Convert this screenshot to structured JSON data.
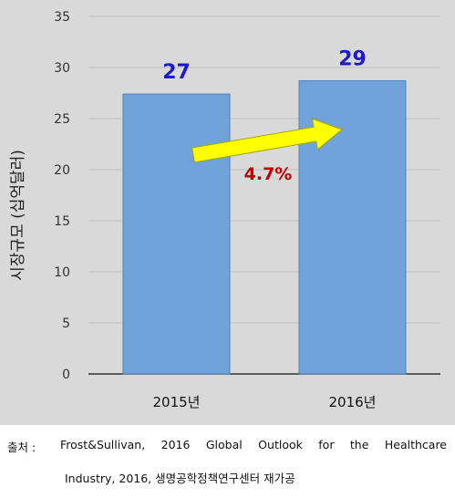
{
  "chart_data": {
    "type": "bar",
    "categories": [
      "2015년",
      "2016년"
    ],
    "values": [
      27.4,
      28.7
    ],
    "data_labels": [
      "27",
      "29"
    ],
    "ylabel": "시장규모 (십억달러)",
    "ylim": [
      0,
      35
    ],
    "yticks": [
      "0",
      "5",
      "10",
      "15",
      "20",
      "25",
      "30",
      "35"
    ],
    "grid": true,
    "bar_color": "#6fa3d9",
    "label_color": "#1f1ac9",
    "annotation": {
      "text": "4.7%",
      "color": "#c00000",
      "arrow_color": "#ffff00"
    }
  },
  "source": {
    "label": "출처 :",
    "line1": "Frost&Sullivan, 2016 Global Outlook for the Healthcare",
    "line2": "Industry, 2016, 생명공학정책연구센터 재가공"
  }
}
